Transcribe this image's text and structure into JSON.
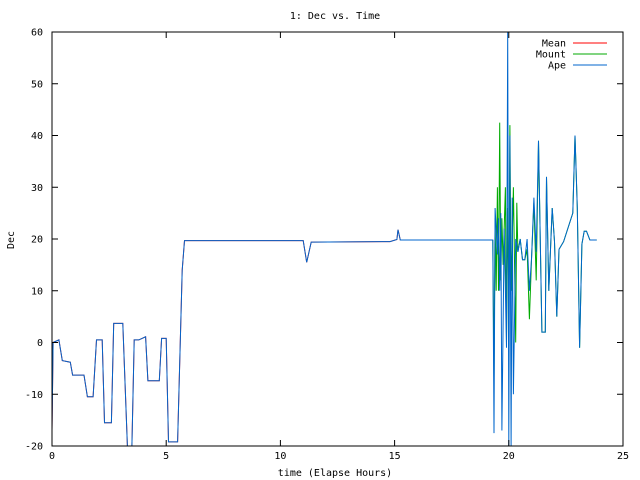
{
  "chart_data": {
    "type": "line",
    "title": "1: Dec vs. Time",
    "xlabel": "time (Elapse Hours)",
    "ylabel": "Dec",
    "xlim": [
      0,
      25
    ],
    "ylim": [
      -20,
      60
    ],
    "xticks": [
      0,
      5,
      10,
      15,
      20,
      25
    ],
    "yticks": [
      -20,
      -10,
      0,
      10,
      20,
      30,
      40,
      50,
      60
    ],
    "grid": false,
    "legend_position": "top-right",
    "series": [
      {
        "name": "Mean",
        "color": "#ff0000",
        "points": [
          [
            0,
            -17
          ],
          [
            0.05,
            0
          ],
          [
            0.3,
            0.5
          ],
          [
            0.45,
            -3.5
          ],
          [
            0.8,
            -3.8
          ],
          [
            0.9,
            -6.3
          ],
          [
            1.4,
            -6.3
          ],
          [
            1.55,
            -10.5
          ],
          [
            1.8,
            -10.5
          ],
          [
            1.95,
            0.5
          ],
          [
            2.2,
            0.5
          ],
          [
            2.3,
            -15.5
          ],
          [
            2.6,
            -15.5
          ],
          [
            2.7,
            3.7
          ],
          [
            3.1,
            3.7
          ],
          [
            3.3,
            -20
          ],
          [
            3.5,
            -20
          ],
          [
            3.6,
            0.5
          ],
          [
            3.8,
            0.5
          ],
          [
            4.1,
            1.1
          ],
          [
            4.2,
            -7.4
          ],
          [
            4.7,
            -7.4
          ],
          [
            4.8,
            0.8
          ],
          [
            5.0,
            0.8
          ],
          [
            5.1,
            -19.2
          ],
          [
            5.5,
            -19.2
          ],
          [
            5.7,
            14
          ],
          [
            5.8,
            19.7
          ],
          [
            11.0,
            19.7
          ],
          [
            11.15,
            15.5
          ],
          [
            11.35,
            19.4
          ],
          [
            14.8,
            19.5
          ],
          [
            15.1,
            19.9
          ],
          [
            15.15,
            21.8
          ],
          [
            15.25,
            19.8
          ],
          [
            19.0,
            19.8
          ]
        ]
      },
      {
        "name": "Mount",
        "color": "#00aa00",
        "points": [
          [
            19.3,
            19.8
          ],
          [
            19.35,
            -7
          ],
          [
            19.4,
            24
          ],
          [
            19.45,
            10
          ],
          [
            19.5,
            30
          ],
          [
            19.55,
            10
          ],
          [
            19.6,
            42.5
          ],
          [
            19.65,
            12
          ],
          [
            19.7,
            24
          ],
          [
            19.75,
            15
          ],
          [
            19.85,
            30
          ],
          [
            19.9,
            0
          ],
          [
            19.95,
            26
          ],
          [
            20.0,
            8
          ],
          [
            20.05,
            42
          ],
          [
            20.1,
            10
          ],
          [
            20.2,
            30
          ],
          [
            20.3,
            0
          ],
          [
            20.35,
            27
          ],
          [
            20.4,
            17.5
          ],
          [
            20.5,
            20
          ],
          [
            20.6,
            16
          ],
          [
            20.7,
            16
          ],
          [
            20.8,
            18
          ],
          [
            20.9,
            4.5
          ],
          [
            21.0,
            16.5
          ],
          [
            21.1,
            27
          ],
          [
            21.2,
            12
          ],
          [
            21.3,
            39
          ],
          [
            21.45,
            2
          ],
          [
            21.6,
            2
          ],
          [
            21.65,
            32
          ],
          [
            21.75,
            10
          ],
          [
            21.9,
            26
          ],
          [
            22.0,
            19.5
          ],
          [
            22.1,
            5
          ],
          [
            22.2,
            18
          ],
          [
            22.4,
            19.5
          ],
          [
            22.8,
            25
          ],
          [
            22.9,
            40
          ],
          [
            23.0,
            26
          ],
          [
            23.1,
            -1
          ],
          [
            23.2,
            19
          ],
          [
            23.3,
            21.5
          ],
          [
            23.4,
            21.5
          ],
          [
            23.55,
            19.8
          ],
          [
            23.85,
            19.8
          ]
        ]
      },
      {
        "name": "Ape",
        "color": "#0066cc",
        "points": [
          [
            0,
            -17
          ],
          [
            0.05,
            0
          ],
          [
            0.3,
            0.5
          ],
          [
            0.45,
            -3.5
          ],
          [
            0.8,
            -3.8
          ],
          [
            0.9,
            -6.3
          ],
          [
            1.4,
            -6.3
          ],
          [
            1.55,
            -10.5
          ],
          [
            1.8,
            -10.5
          ],
          [
            1.95,
            0.5
          ],
          [
            2.2,
            0.5
          ],
          [
            2.3,
            -15.5
          ],
          [
            2.6,
            -15.5
          ],
          [
            2.7,
            3.7
          ],
          [
            3.1,
            3.7
          ],
          [
            3.3,
            -20
          ],
          [
            3.5,
            -20
          ],
          [
            3.6,
            0.5
          ],
          [
            3.8,
            0.5
          ],
          [
            4.1,
            1.1
          ],
          [
            4.2,
            -7.4
          ],
          [
            4.7,
            -7.4
          ],
          [
            4.8,
            0.8
          ],
          [
            5.0,
            0.8
          ],
          [
            5.1,
            -19.2
          ],
          [
            5.5,
            -19.2
          ],
          [
            5.7,
            14
          ],
          [
            5.8,
            19.7
          ],
          [
            11.0,
            19.7
          ],
          [
            11.15,
            15.5
          ],
          [
            11.35,
            19.4
          ],
          [
            14.8,
            19.5
          ],
          [
            15.1,
            19.9
          ],
          [
            15.15,
            21.8
          ],
          [
            15.25,
            19.8
          ],
          [
            19.3,
            19.8
          ],
          [
            19.35,
            -17.5
          ],
          [
            19.4,
            26
          ],
          [
            19.5,
            17
          ],
          [
            19.55,
            24
          ],
          [
            19.6,
            10
          ],
          [
            19.65,
            25
          ],
          [
            19.7,
            -17
          ],
          [
            19.8,
            22
          ],
          [
            19.9,
            -1
          ],
          [
            19.95,
            60
          ],
          [
            20.0,
            -20
          ],
          [
            20.05,
            40
          ],
          [
            20.1,
            -20
          ],
          [
            20.15,
            28
          ],
          [
            20.2,
            -10
          ],
          [
            20.3,
            20
          ],
          [
            20.4,
            17.5
          ],
          [
            20.5,
            20
          ],
          [
            20.6,
            16
          ],
          [
            20.7,
            16
          ],
          [
            20.8,
            20
          ],
          [
            20.9,
            10
          ],
          [
            21.0,
            16.5
          ],
          [
            21.1,
            28
          ],
          [
            21.2,
            17.5
          ],
          [
            21.3,
            39
          ],
          [
            21.45,
            2
          ],
          [
            21.6,
            2
          ],
          [
            21.65,
            32
          ],
          [
            21.75,
            10
          ],
          [
            21.9,
            26
          ],
          [
            22.0,
            19.5
          ],
          [
            22.1,
            5
          ],
          [
            22.2,
            18
          ],
          [
            22.4,
            19.5
          ],
          [
            22.8,
            25
          ],
          [
            22.9,
            40
          ],
          [
            23.0,
            26
          ],
          [
            23.1,
            -1
          ],
          [
            23.2,
            19
          ],
          [
            23.3,
            21.5
          ],
          [
            23.4,
            21.5
          ],
          [
            23.55,
            19.8
          ],
          [
            23.85,
            19.8
          ]
        ]
      }
    ]
  }
}
